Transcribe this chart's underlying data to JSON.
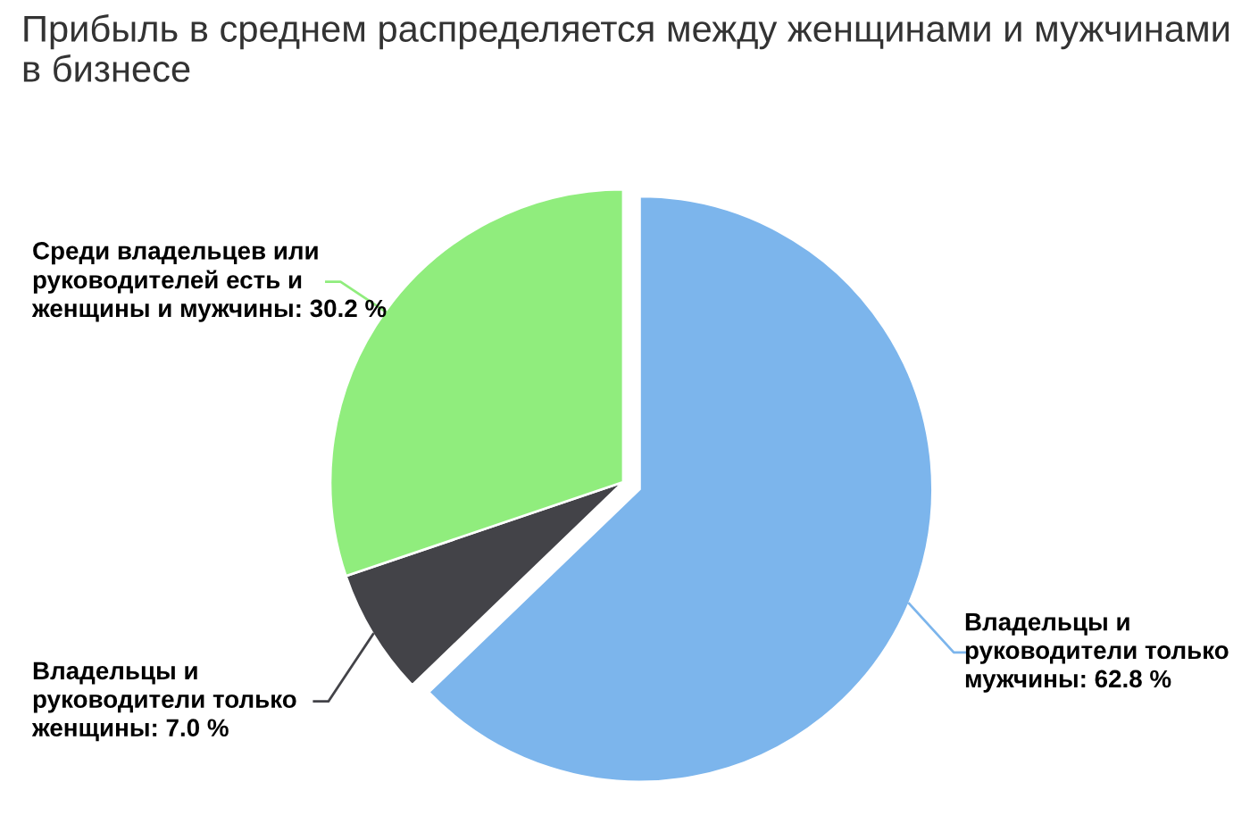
{
  "chart_data": {
    "type": "pie",
    "title": "Прибыль в среднем распределяется между женщинами и мужчинами в бизнесе",
    "categories": [
      "Владельцы и\nруководители только\nмужчины",
      "Владельцы и\nруководители только\nженщины",
      "Среди владельцев или\nруководителей есть и\nженщины и мужчины"
    ],
    "values": [
      62.8,
      7.0,
      30.2
    ],
    "value_labels": [
      "62.8 %",
      "7.0 %",
      "30.2 %"
    ],
    "colors": [
      "#7cb5ec",
      "#434348",
      "#90ed7d"
    ]
  }
}
